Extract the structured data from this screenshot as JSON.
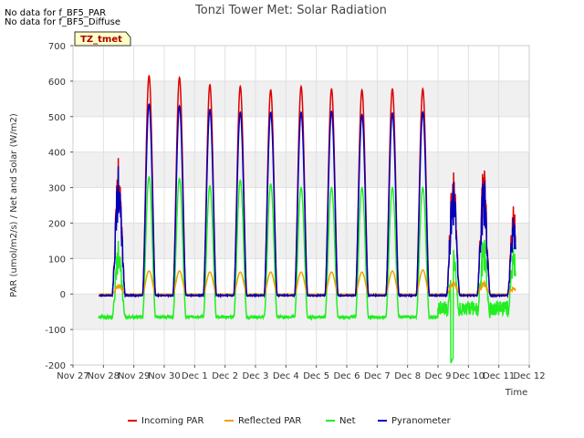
{
  "notes": [
    "No data for f_BF5_PAR",
    "No data for f_BF5_Diffuse"
  ],
  "chart_data": {
    "type": "line",
    "title": "Tonzi Tower Met: Solar Radiation",
    "xlabel": "Time",
    "ylabel": "PAR (umol/m2/s) / Net and Solar (W/m2)",
    "ylim": [
      -200,
      700
    ],
    "yticks": [
      -200,
      -100,
      0,
      100,
      200,
      300,
      400,
      500,
      600,
      700
    ],
    "xlim": [
      0,
      15
    ],
    "xticks": [
      0,
      1,
      2,
      3,
      4,
      5,
      6,
      7,
      8,
      9,
      10,
      11,
      12,
      13,
      14,
      15
    ],
    "xtick_labels": [
      "Nov 27",
      "Nov 28",
      "Nov 29",
      "Nov 30",
      "Dec 1",
      "Dec 2",
      "Dec 3",
      "Dec 4",
      "Dec 5",
      "Dec 6",
      "Dec 7",
      "Dec 8",
      "Dec 9",
      "Dec 10",
      "Dec 11",
      "Dec 12"
    ],
    "grid": true,
    "legend_placement": "bottom",
    "annotation_box": "TZ_tmet",
    "day_peaks": {
      "days": [
        1,
        2,
        3,
        4,
        5,
        6,
        7,
        8,
        9,
        10,
        11,
        12,
        13,
        14
      ],
      "Incoming PAR": [
        410,
        615,
        610,
        590,
        585,
        575,
        585,
        578,
        575,
        578,
        578,
        380,
        360,
        265
      ],
      "Reflected PAR": [
        30,
        65,
        65,
        62,
        62,
        62,
        62,
        62,
        62,
        65,
        68,
        40,
        35,
        20
      ],
      "Net": [
        165,
        330,
        325,
        305,
        320,
        310,
        300,
        300,
        300,
        300,
        300,
        145,
        160,
        145
      ],
      "Pyranometer": [
        385,
        535,
        530,
        520,
        512,
        512,
        512,
        515,
        505,
        510,
        512,
        350,
        330,
        230
      ]
    },
    "night_net": -65,
    "min_net": -195,
    "series": [
      {
        "name": "Incoming PAR",
        "color": "#dd0000"
      },
      {
        "name": "Reflected PAR",
        "color": "#f0a000"
      },
      {
        "name": "Net",
        "color": "#22ee22"
      },
      {
        "name": "Pyranometer",
        "color": "#0000bb"
      }
    ]
  }
}
